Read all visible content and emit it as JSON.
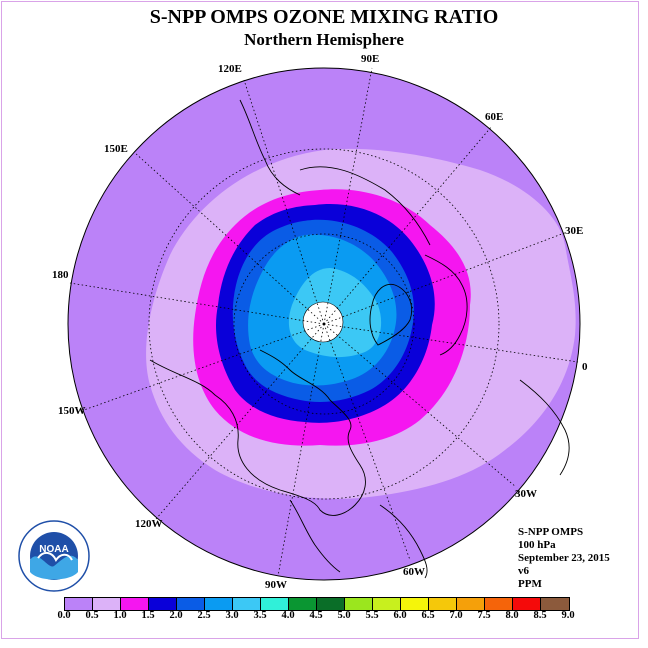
{
  "title": "S-NPP OMPS OZONE MIXING RATIO",
  "subtitle": "Northern Hemisphere",
  "longitude_labels": {
    "lon_90e": "90E",
    "lon_60e": "60E",
    "lon_30e": "30E",
    "lon_0": "0",
    "lon_30w": "30W",
    "lon_60w": "60W",
    "lon_90w": "90W",
    "lon_120w": "120W",
    "lon_150w": "150W",
    "lon_180": "180",
    "lon_150e": "150E",
    "lon_120e": "120E"
  },
  "info": {
    "instrument": "S-NPP OMPS",
    "level": "100 hPa",
    "date": "September 23, 2015",
    "version": "v6",
    "units": "PPM"
  },
  "logo_text": "NOAA",
  "legend": {
    "colors": [
      "#bb82f8",
      "#dcb2f8",
      "#f516f0",
      "#0a00d9",
      "#0a5ce6",
      "#0a9bf2",
      "#3cc8f5",
      "#30f0d9",
      "#0a9632",
      "#0a6e28",
      "#9be61e",
      "#c8f01e",
      "#f5f50a",
      "#f5c80a",
      "#f5a00a",
      "#f5640a",
      "#f50a0a",
      "#8c5a3c"
    ],
    "ticks": [
      "0.0",
      "0.5",
      "1.0",
      "1.5",
      "2.0",
      "2.5",
      "3.0",
      "3.5",
      "4.0",
      "4.5",
      "5.0",
      "5.5",
      "6.0",
      "6.5",
      "7.0",
      "7.5",
      "8.0",
      "8.5",
      "9.0"
    ]
  },
  "map_colors": {
    "outer": "#bb82f8",
    "light": "#dcb2f8",
    "magenta": "#f516f0",
    "darkblue": "#0a00d9",
    "midblue": "#0a5ce6",
    "lightblue": "#0a9bf2",
    "cyan": "#3cc8f5",
    "pole": "#ffffff"
  }
}
